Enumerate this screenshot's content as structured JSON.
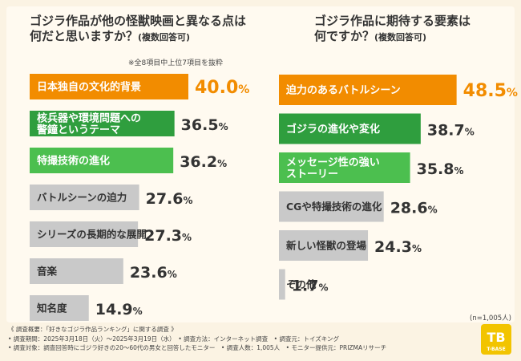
{
  "colors": {
    "rank1": "#f28c00",
    "rank2": "#2f9e3e",
    "rank3": "#4cbf4f",
    "rest": "#c9c9c9",
    "value_rank1": "#f28c00",
    "value_rest": "#333333"
  },
  "left_title": {
    "line1": "ゴジラ作品が他の怪獣映画と異なる点は",
    "line2": "何だと思いますか？",
    "note": "(複数回答可)"
  },
  "right_title": {
    "line1": "ゴジラ作品に期待する要素は",
    "line2": "何ですか？",
    "note": "(複数回答可)"
  },
  "left_note": "※全8項目中上位7項目を抜粋",
  "sample_size": "(n=1,005人)",
  "chart_data": [
    {
      "type": "bar",
      "orientation": "horizontal",
      "title": "ゴジラ作品が他の怪獣映画と異なる点は何だと思いますか？(複数回答可)",
      "unit": "%",
      "categories": [
        "日本独自の文化的背景",
        "核兵器や環境問題への|警鐘というテーマ",
        "特撮技術の進化",
        "バトルシーンの迫力",
        "シリーズの長期的な展開",
        "音楽",
        "知名度"
      ],
      "values": [
        40.0,
        36.5,
        36.2,
        27.6,
        27.3,
        23.6,
        14.9
      ],
      "value_labels": [
        "40.0",
        "36.5",
        "36.2",
        "27.6",
        "27.3",
        "23.6",
        "14.9"
      ],
      "xlim": [
        0,
        50
      ]
    },
    {
      "type": "bar",
      "orientation": "horizontal",
      "title": "ゴジラ作品に期待する要素は何ですか？(複数回答可)",
      "unit": "%",
      "categories": [
        "迫力のあるバトルシーン",
        "ゴジラの進化や変化",
        "メッセージ性の強い|ストーリー",
        "CGや特撮技術の進化",
        "新しい怪獣の登場",
        "その他"
      ],
      "values": [
        48.5,
        38.7,
        35.8,
        28.6,
        24.3,
        1.7
      ],
      "value_labels": [
        "48.5",
        "38.7",
        "35.8",
        "28.6",
        "24.3",
        "1.7"
      ],
      "xlim": [
        0,
        50
      ]
    }
  ],
  "footer": {
    "line1": "《 調査概要：「好きなゴジラ作品ランキング」に関する調査 》",
    "line2": "• 調査期間：2025年3月18日（火）～2025年3月19日（水）　• 調査方法：インターネット調査　• 調査元：トイズキング",
    "line3": "• 調査対象：調査回答時にゴジラ好きの20～60代の男女と回答したモニター　• 調査人数：1,005人　• モニター提供元：PRIZMAリサーチ"
  },
  "logo": {
    "mark": "TB",
    "text": "T-BASE"
  }
}
